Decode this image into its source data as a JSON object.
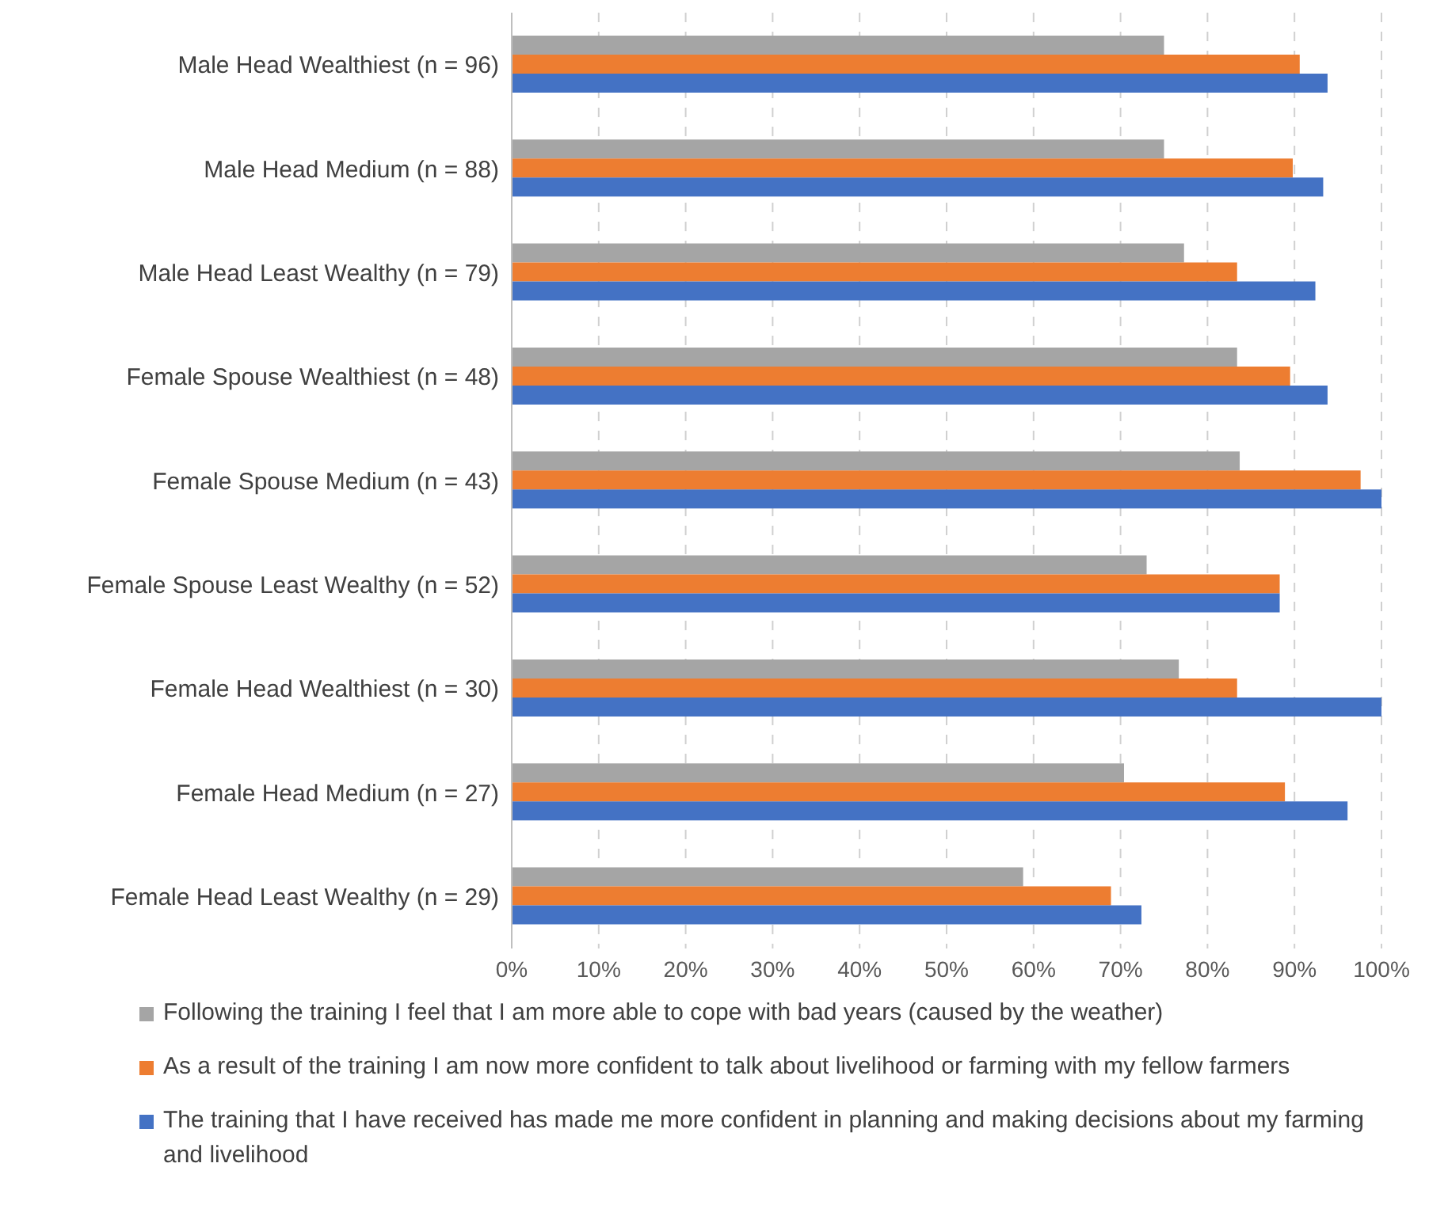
{
  "chart_data": {
    "type": "bar",
    "orientation": "horizontal",
    "categories": [
      "Male Head Wealthiest (n = 96)",
      "Male Head Medium (n = 88)",
      "Male Head Least Wealthy (n = 79)",
      "Female Spouse Wealthiest (n = 48)",
      "Female Spouse Medium (n = 43)",
      "Female Spouse Least Wealthy (n = 52)",
      "Female Head Wealthiest (n = 30)",
      "Female Head Medium (n = 27)",
      "Female Head Least Wealthy (n = 29)"
    ],
    "series": [
      {
        "name": "Following the training I feel that I am more able to cope with bad years (caused by the weather)",
        "color": "#a5a5a5",
        "values": [
          75,
          75,
          77.3,
          83.4,
          83.7,
          73,
          76.7,
          70.4,
          58.8
        ]
      },
      {
        "name": "As a result of the training I am now more confident to talk about livelihood or farming with my fellow farmers",
        "color": "#ed7d31",
        "values": [
          90.6,
          89.8,
          83.4,
          89.5,
          97.6,
          88.3,
          83.4,
          88.9,
          68.9
        ]
      },
      {
        "name": "The training that I have received has made me more confident in planning and making decisions about my farming and livelihood",
        "color": "#4472c4",
        "values": [
          93.8,
          93.3,
          92.4,
          93.8,
          100,
          88.3,
          100,
          96.1,
          72.4
        ]
      }
    ],
    "xlim": [
      0,
      100
    ],
    "xticks": [
      {
        "value": 0,
        "label": "0%"
      },
      {
        "value": 10,
        "label": "10%"
      },
      {
        "value": 20,
        "label": "20%"
      },
      {
        "value": 30,
        "label": "30%"
      },
      {
        "value": 40,
        "label": "40%"
      },
      {
        "value": 50,
        "label": "50%"
      },
      {
        "value": 60,
        "label": "60%"
      },
      {
        "value": 70,
        "label": "70%"
      },
      {
        "value": 80,
        "label": "80%"
      },
      {
        "value": 90,
        "label": "90%"
      },
      {
        "value": 100,
        "label": "100%"
      }
    ],
    "grid": "x",
    "legend": "bottom"
  }
}
